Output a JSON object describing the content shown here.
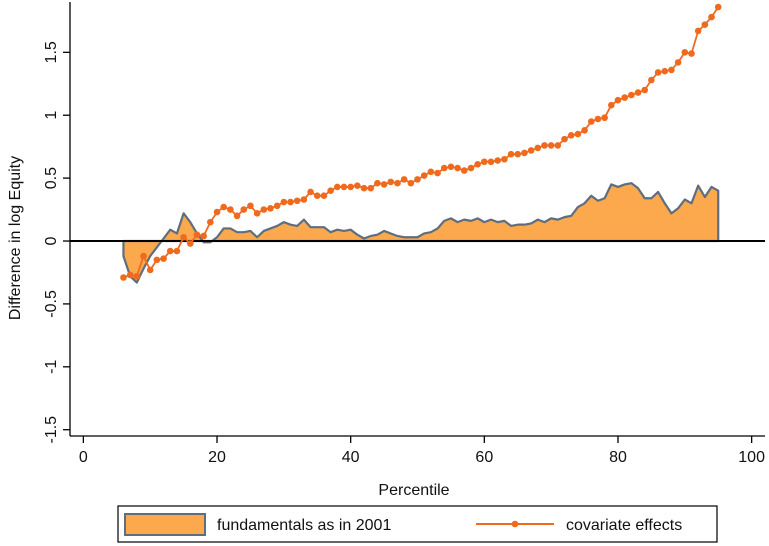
{
  "chart_data": {
    "type": "area",
    "title": "",
    "xlabel": "Percentile",
    "ylabel": "Difference in log Equity",
    "xlim": [
      -2,
      102
    ],
    "ylim": [
      -1.55,
      1.9
    ],
    "xticks": [
      0,
      20,
      40,
      60,
      80,
      100
    ],
    "xtick_labels": [
      "0",
      "20",
      "40",
      "60",
      "80",
      "100"
    ],
    "yticks": [
      -1.5,
      -1,
      -0.5,
      0,
      0.5,
      1,
      1.5
    ],
    "ytick_labels": [
      "-1.5",
      "-1",
      "-0.5",
      "0",
      "0.5",
      "1",
      "1.5"
    ],
    "grid": false,
    "legend_position": "bottom",
    "zero_line": true,
    "colors": {
      "area_fill": "#FBA94C",
      "area_edge": "#5E6E80",
      "line": "#F06A1E",
      "zero": "#000000"
    },
    "series": [
      {
        "name": "fundamentals as in 2001",
        "kind": "area",
        "x": [
          6,
          7,
          8,
          9,
          10,
          11,
          12,
          13,
          14,
          15,
          16,
          17,
          18,
          19,
          20,
          21,
          22,
          23,
          24,
          25,
          26,
          27,
          28,
          29,
          30,
          31,
          32,
          33,
          34,
          35,
          36,
          37,
          38,
          39,
          40,
          41,
          42,
          43,
          44,
          45,
          46,
          47,
          48,
          49,
          50,
          51,
          52,
          53,
          54,
          55,
          56,
          57,
          58,
          59,
          60,
          61,
          62,
          63,
          64,
          65,
          66,
          67,
          68,
          69,
          70,
          71,
          72,
          73,
          74,
          75,
          76,
          77,
          78,
          79,
          80,
          81,
          82,
          83,
          84,
          85,
          86,
          87,
          88,
          89,
          90,
          91,
          92,
          93,
          94,
          95
        ],
        "values": [
          -0.12,
          -0.28,
          -0.33,
          -0.22,
          -0.12,
          -0.05,
          0.02,
          0.09,
          0.06,
          0.22,
          0.15,
          0.06,
          -0.01,
          -0.01,
          0.03,
          0.1,
          0.1,
          0.07,
          0.07,
          0.08,
          0.03,
          0.08,
          0.1,
          0.12,
          0.15,
          0.13,
          0.12,
          0.17,
          0.11,
          0.11,
          0.11,
          0.07,
          0.09,
          0.08,
          0.09,
          0.05,
          0.02,
          0.04,
          0.05,
          0.08,
          0.06,
          0.04,
          0.03,
          0.03,
          0.03,
          0.06,
          0.07,
          0.1,
          0.16,
          0.18,
          0.15,
          0.17,
          0.16,
          0.18,
          0.15,
          0.17,
          0.15,
          0.16,
          0.12,
          0.13,
          0.13,
          0.14,
          0.17,
          0.15,
          0.18,
          0.17,
          0.19,
          0.2,
          0.27,
          0.3,
          0.36,
          0.32,
          0.34,
          0.45,
          0.43,
          0.45,
          0.46,
          0.42,
          0.34,
          0.34,
          0.39,
          0.3,
          0.22,
          0.26,
          0.33,
          0.3,
          0.44,
          0.35,
          0.43,
          0.4
        ]
      },
      {
        "name": "covariate effects",
        "kind": "line",
        "x": [
          6,
          7,
          8,
          9,
          10,
          11,
          12,
          13,
          14,
          15,
          16,
          17,
          18,
          19,
          20,
          21,
          22,
          23,
          24,
          25,
          26,
          27,
          28,
          29,
          30,
          31,
          32,
          33,
          34,
          35,
          36,
          37,
          38,
          39,
          40,
          41,
          42,
          43,
          44,
          45,
          46,
          47,
          48,
          49,
          50,
          51,
          52,
          53,
          54,
          55,
          56,
          57,
          58,
          59,
          60,
          61,
          62,
          63,
          64,
          65,
          66,
          67,
          68,
          69,
          70,
          71,
          72,
          73,
          74,
          75,
          76,
          77,
          78,
          79,
          80,
          81,
          82,
          83,
          84,
          85,
          86,
          87,
          88,
          89,
          90,
          91,
          92,
          93,
          94,
          95
        ],
        "values": [
          -0.29,
          -0.27,
          -0.28,
          -0.12,
          -0.23,
          -0.15,
          -0.14,
          -0.08,
          -0.08,
          0.03,
          -0.02,
          0.05,
          0.04,
          0.15,
          0.23,
          0.27,
          0.25,
          0.2,
          0.25,
          0.28,
          0.22,
          0.25,
          0.26,
          0.28,
          0.31,
          0.31,
          0.32,
          0.33,
          0.39,
          0.36,
          0.36,
          0.4,
          0.43,
          0.43,
          0.43,
          0.44,
          0.42,
          0.42,
          0.46,
          0.45,
          0.47,
          0.46,
          0.49,
          0.46,
          0.49,
          0.52,
          0.55,
          0.54,
          0.58,
          0.59,
          0.58,
          0.56,
          0.58,
          0.61,
          0.63,
          0.63,
          0.64,
          0.65,
          0.69,
          0.69,
          0.7,
          0.72,
          0.74,
          0.76,
          0.76,
          0.76,
          0.81,
          0.84,
          0.85,
          0.88,
          0.95,
          0.97,
          0.98,
          1.08,
          1.12,
          1.14,
          1.16,
          1.18,
          1.2,
          1.28,
          1.34,
          1.35,
          1.36,
          1.42,
          1.5,
          1.49,
          1.67,
          1.72,
          1.78,
          1.86
        ]
      }
    ]
  }
}
